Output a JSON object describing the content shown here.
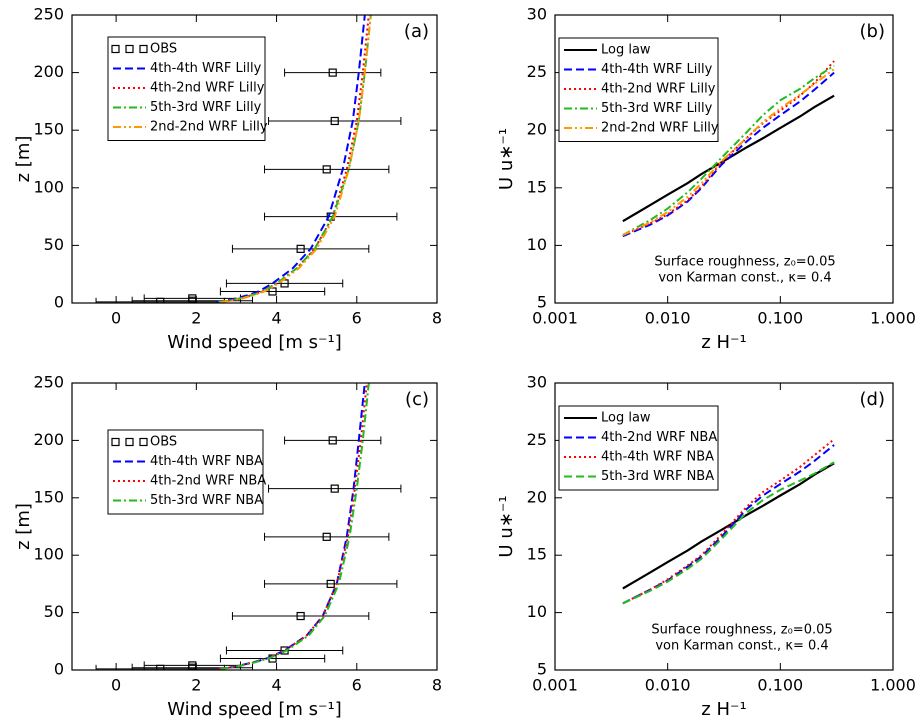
{
  "chart_data": [
    {
      "type": "line",
      "label": "(a)",
      "xlabel": "Wind speed [m s⁻¹]",
      "ylabel": "z [m]",
      "xlim": [
        -1.1,
        8
      ],
      "xticks": [
        0,
        2,
        4,
        6,
        8
      ],
      "ylim": [
        0,
        250
      ],
      "yticks": [
        0,
        50,
        100,
        150,
        200,
        250
      ],
      "series": [
        {
          "name": "OBS",
          "color": "#000000",
          "style": "markers",
          "z": [
            200,
            158,
            116,
            75,
            47,
            17,
            10,
            4,
            2,
            1
          ],
          "values": [
            5.4,
            5.45,
            5.25,
            5.35,
            4.6,
            4.2,
            3.9,
            1.9,
            1.9,
            1.1
          ],
          "err": [
            1.2,
            1.65,
            1.55,
            1.65,
            1.7,
            1.45,
            1.3,
            1.2,
            1.5,
            1.6
          ]
        },
        {
          "name": "4th-4th WRF Lilly",
          "color": "#0000ff",
          "style": "dashed",
          "z": [
            1,
            2,
            4,
            7,
            10,
            17,
            30,
            47,
            75,
            116,
            158,
            200,
            250
          ],
          "values": [
            2.5,
            2.7,
            3.0,
            3.3,
            3.55,
            3.9,
            4.4,
            4.85,
            5.3,
            5.65,
            5.9,
            6.05,
            6.2
          ]
        },
        {
          "name": "4th-2nd WRF Lilly",
          "color": "#ff0000",
          "style": "dotted",
          "z": [
            1,
            2,
            4,
            7,
            10,
            17,
            30,
            47,
            75,
            116,
            158,
            200,
            250
          ],
          "values": [
            2.55,
            2.8,
            3.1,
            3.4,
            3.65,
            4.0,
            4.5,
            4.95,
            5.4,
            5.75,
            6.0,
            6.15,
            6.3
          ]
        },
        {
          "name": "5th-3rd WRF Lilly",
          "color": "#22bb22",
          "style": "dashdot",
          "z": [
            1,
            2,
            4,
            7,
            10,
            17,
            30,
            47,
            75,
            116,
            158,
            200,
            250
          ],
          "values": [
            2.55,
            2.8,
            3.1,
            3.4,
            3.65,
            4.0,
            4.5,
            4.95,
            5.4,
            5.8,
            6.05,
            6.2,
            6.35
          ]
        },
        {
          "name": "2nd-2nd WRF Lilly",
          "color": "#ff9900",
          "style": "dashdotdot",
          "z": [
            1,
            2,
            4,
            7,
            10,
            17,
            30,
            47,
            75,
            116,
            158,
            200,
            250
          ],
          "values": [
            2.6,
            2.85,
            3.15,
            3.45,
            3.7,
            4.05,
            4.55,
            5.0,
            5.45,
            5.8,
            6.05,
            6.2,
            6.35
          ]
        }
      ]
    },
    {
      "type": "line",
      "label": "(b)",
      "xlabel": "z H⁻¹",
      "ylabel": "U u∗⁻¹",
      "xscale": "log",
      "xlim": [
        0.001,
        1
      ],
      "xticks": [
        0.001,
        {
          "value": 0.01,
          "label": "0.010"
        },
        {
          "value": 0.1,
          "label": "0.100"
        },
        {
          "value": 1,
          "label": "1.000"
        }
      ],
      "ylim": [
        5,
        30
      ],
      "yticks": [
        5,
        10,
        15,
        20,
        25,
        30
      ],
      "annotations": [
        "Surface roughness, z₀=0.05",
        "von Karman const., κ= 0.4"
      ],
      "x": [
        0.004,
        0.007,
        0.01,
        0.015,
        0.02,
        0.03,
        0.05,
        0.07,
        0.1,
        0.15,
        0.2,
        0.3
      ],
      "series": [
        {
          "name": "Log law",
          "color": "#000000",
          "style": "solid",
          "values": [
            12.1,
            13.5,
            14.4,
            15.4,
            16.2,
            17.2,
            18.5,
            19.3,
            20.2,
            21.2,
            22.0,
            23.0
          ]
        },
        {
          "name": "4th-4th WRF Lilly",
          "color": "#0000ff",
          "style": "dashed",
          "values": [
            10.8,
            11.8,
            12.6,
            13.8,
            15.0,
            17.0,
            19.0,
            20.2,
            21.3,
            22.5,
            23.5,
            25.0
          ]
        },
        {
          "name": "4th-2nd WRF Lilly",
          "color": "#ff0000",
          "style": "dotted",
          "values": [
            10.9,
            11.9,
            12.7,
            13.9,
            15.1,
            17.2,
            19.3,
            20.6,
            21.7,
            23.0,
            24.1,
            26.0
          ]
        },
        {
          "name": "5th-3rd WRF Lilly",
          "color": "#22bb22",
          "style": "dashdot",
          "values": [
            10.9,
            12.2,
            13.2,
            14.6,
            15.8,
            17.6,
            19.8,
            21.3,
            22.6,
            23.6,
            24.5,
            25.6
          ]
        },
        {
          "name": "2nd-2nd WRF Lilly",
          "color": "#ff9900",
          "style": "dashdotdot",
          "values": [
            10.9,
            12.0,
            12.9,
            14.2,
            15.4,
            17.3,
            19.3,
            20.7,
            21.9,
            23.1,
            24.0,
            25.3
          ]
        }
      ]
    },
    {
      "type": "line",
      "label": "(c)",
      "xlabel": "Wind speed [m s⁻¹]",
      "ylabel": "z [m]",
      "xlim": [
        -1.1,
        8
      ],
      "xticks": [
        0,
        2,
        4,
        6,
        8
      ],
      "ylim": [
        0,
        250
      ],
      "yticks": [
        0,
        50,
        100,
        150,
        200,
        250
      ],
      "series": [
        {
          "name": "OBS",
          "color": "#000000",
          "style": "markers",
          "z": [
            200,
            158,
            116,
            75,
            47,
            17,
            10,
            4,
            2,
            1
          ],
          "values": [
            5.4,
            5.45,
            5.25,
            5.35,
            4.6,
            4.2,
            3.9,
            1.9,
            1.9,
            1.1
          ],
          "err": [
            1.2,
            1.65,
            1.55,
            1.65,
            1.7,
            1.45,
            1.3,
            1.2,
            1.5,
            1.6
          ]
        },
        {
          "name": "4th-4th WRF NBA",
          "color": "#0000ff",
          "style": "dashed",
          "z": [
            1,
            2,
            4,
            7,
            10,
            17,
            30,
            47,
            75,
            116,
            158,
            200,
            250
          ],
          "values": [
            2.55,
            2.8,
            3.1,
            3.45,
            3.75,
            4.2,
            4.75,
            5.15,
            5.5,
            5.75,
            5.92,
            6.05,
            6.2
          ]
        },
        {
          "name": "4th-2nd WRF NBA",
          "color": "#ff0000",
          "style": "dotted",
          "z": [
            1,
            2,
            4,
            7,
            10,
            17,
            30,
            47,
            75,
            116,
            158,
            200,
            250
          ],
          "values": [
            2.55,
            2.8,
            3.1,
            3.45,
            3.75,
            4.2,
            4.75,
            5.15,
            5.5,
            5.78,
            5.95,
            6.1,
            6.25
          ]
        },
        {
          "name": "5th-3rd WRF NBA",
          "color": "#22bb22",
          "style": "dashdot",
          "z": [
            1,
            2,
            4,
            7,
            10,
            17,
            30,
            47,
            75,
            116,
            158,
            200,
            250
          ],
          "values": [
            2.6,
            2.85,
            3.15,
            3.5,
            3.8,
            4.25,
            4.8,
            5.2,
            5.55,
            5.82,
            6.0,
            6.15,
            6.3
          ]
        }
      ]
    },
    {
      "type": "line",
      "label": "(d)",
      "xlabel": "z H⁻¹",
      "ylabel": "U u∗⁻¹",
      "xscale": "log",
      "xlim": [
        0.001,
        1
      ],
      "xticks": [
        0.001,
        {
          "value": 0.01,
          "label": "0.010"
        },
        {
          "value": 0.1,
          "label": "0.100"
        },
        {
          "value": 1,
          "label": "1.000"
        }
      ],
      "ylim": [
        5,
        30
      ],
      "yticks": [
        5,
        10,
        15,
        20,
        25,
        30
      ],
      "annotations": [
        "Surface roughness, z₀=0.05",
        "von Karman const., κ= 0.4"
      ],
      "x": [
        0.004,
        0.007,
        0.01,
        0.015,
        0.02,
        0.03,
        0.05,
        0.07,
        0.1,
        0.15,
        0.2,
        0.3
      ],
      "series": [
        {
          "name": "Log law",
          "color": "#000000",
          "style": "solid",
          "values": [
            12.1,
            13.5,
            14.4,
            15.4,
            16.2,
            17.2,
            18.5,
            19.3,
            20.2,
            21.2,
            22.0,
            23.0
          ]
        },
        {
          "name": "4th-2nd WRF NBA",
          "color": "#0000ff",
          "style": "dashed",
          "values": [
            10.8,
            12.0,
            12.8,
            14.0,
            14.9,
            16.6,
            19.0,
            20.2,
            21.2,
            22.3,
            23.2,
            24.6
          ]
        },
        {
          "name": "4th-4th WRF NBA",
          "color": "#ff0000",
          "style": "dotted",
          "values": [
            10.8,
            12.0,
            12.9,
            14.1,
            15.0,
            16.8,
            19.2,
            20.5,
            21.5,
            22.7,
            23.7,
            25.1
          ]
        },
        {
          "name": "5th-3rd WRF NBA",
          "color": "#22bb22",
          "style": "dashed",
          "values": [
            10.8,
            11.9,
            12.7,
            13.8,
            14.7,
            16.4,
            18.7,
            19.8,
            20.7,
            21.5,
            22.1,
            23.1
          ]
        }
      ]
    }
  ]
}
